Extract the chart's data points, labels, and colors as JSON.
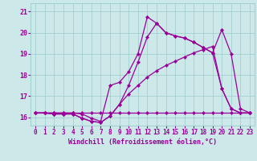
{
  "xlabel": "Windchill (Refroidissement éolien,°C)",
  "hours": [
    0,
    1,
    2,
    3,
    4,
    5,
    6,
    7,
    8,
    9,
    10,
    11,
    12,
    13,
    14,
    15,
    16,
    17,
    18,
    19,
    20,
    21,
    22,
    23
  ],
  "line1": [
    16.2,
    16.2,
    16.2,
    16.2,
    16.2,
    16.2,
    16.2,
    16.2,
    16.2,
    16.2,
    16.2,
    16.2,
    16.2,
    16.2,
    16.2,
    16.2,
    16.2,
    16.2,
    16.2,
    16.2,
    16.2,
    16.2,
    16.2,
    16.2
  ],
  "line2": [
    16.2,
    16.2,
    16.15,
    16.15,
    16.15,
    15.95,
    15.8,
    15.75,
    16.05,
    16.6,
    17.1,
    17.5,
    17.9,
    18.2,
    18.45,
    18.65,
    18.85,
    19.05,
    19.2,
    19.35,
    17.35,
    16.4,
    16.2,
    16.2
  ],
  "line3": [
    16.2,
    16.2,
    16.15,
    16.15,
    16.15,
    15.95,
    15.8,
    15.75,
    16.05,
    16.6,
    17.5,
    18.6,
    19.8,
    20.45,
    20.0,
    19.85,
    19.75,
    19.55,
    19.3,
    19.05,
    17.35,
    16.4,
    16.2,
    16.2
  ],
  "line4": [
    16.2,
    16.2,
    16.2,
    16.2,
    16.2,
    16.15,
    15.95,
    15.8,
    17.5,
    17.65,
    18.15,
    19.0,
    20.75,
    20.45,
    20.0,
    19.85,
    19.75,
    19.55,
    19.3,
    19.05,
    20.15,
    19.0,
    16.4,
    16.2
  ],
  "ylim": [
    15.6,
    21.4
  ],
  "xlim": [
    -0.5,
    23.5
  ],
  "yticks": [
    16,
    17,
    18,
    19,
    20,
    21
  ],
  "line_color": "#990099",
  "bg_color": "#cce8e8",
  "grid_color": "#99cccc",
  "marker": "D",
  "markersize": 2.2,
  "linewidth": 0.9,
  "tick_fontsize": 5.5,
  "xlabel_fontsize": 6.0
}
